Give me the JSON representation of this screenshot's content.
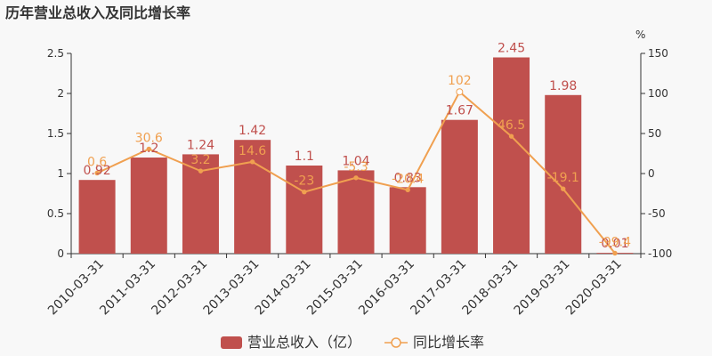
{
  "chart_data": {
    "type": "bar",
    "title": "历年营业总收入及同比增长率",
    "categories": [
      "2010-03-31",
      "2011-03-31",
      "2012-03-31",
      "2013-03-31",
      "2014-03-31",
      "2015-03-31",
      "2016-03-31",
      "2017-03-31",
      "2018-03-31",
      "2019-03-31",
      "2020-03-31"
    ],
    "series": [
      {
        "name": "营业总收入（亿）",
        "type": "bar",
        "axis": "left",
        "color": "#c0504d",
        "values": [
          0.92,
          1.2,
          1.24,
          1.42,
          1.1,
          1.04,
          0.83,
          1.67,
          2.45,
          1.98,
          0.01
        ],
        "labels": [
          "0.92",
          "1.2",
          "1.24",
          "1.42",
          "1.1",
          "1.04",
          "0.83",
          "1.67",
          "2.45",
          "1.98",
          "0.01"
        ]
      },
      {
        "name": "同比增长率",
        "type": "line",
        "axis": "right",
        "color": "#f0a050",
        "values": [
          0.6,
          30.6,
          3.2,
          14.6,
          -23,
          -5.3,
          -20.4,
          102,
          46.5,
          -19.1,
          -99.4
        ],
        "labels": [
          "0.6",
          "30.6",
          "3.2",
          "14.6",
          "-23",
          "-5.3",
          "-20.4",
          "102",
          "46.5",
          "-19.1",
          "-99.4"
        ]
      }
    ],
    "y_left": {
      "ylim": [
        0,
        2.5
      ],
      "ticks": [
        "0",
        "0.5",
        "1",
        "1.5",
        "2",
        "2.5"
      ],
      "tick_values": [
        0,
        0.5,
        1,
        1.5,
        2,
        2.5
      ]
    },
    "y_right": {
      "ylim": [
        -100,
        150
      ],
      "unit": "%",
      "ticks": [
        "-100",
        "-50",
        "0",
        "50",
        "100",
        "150"
      ],
      "tick_values": [
        -100,
        -50,
        0,
        50,
        100,
        150
      ]
    },
    "grid": false,
    "legend_position": "bottom-center"
  }
}
